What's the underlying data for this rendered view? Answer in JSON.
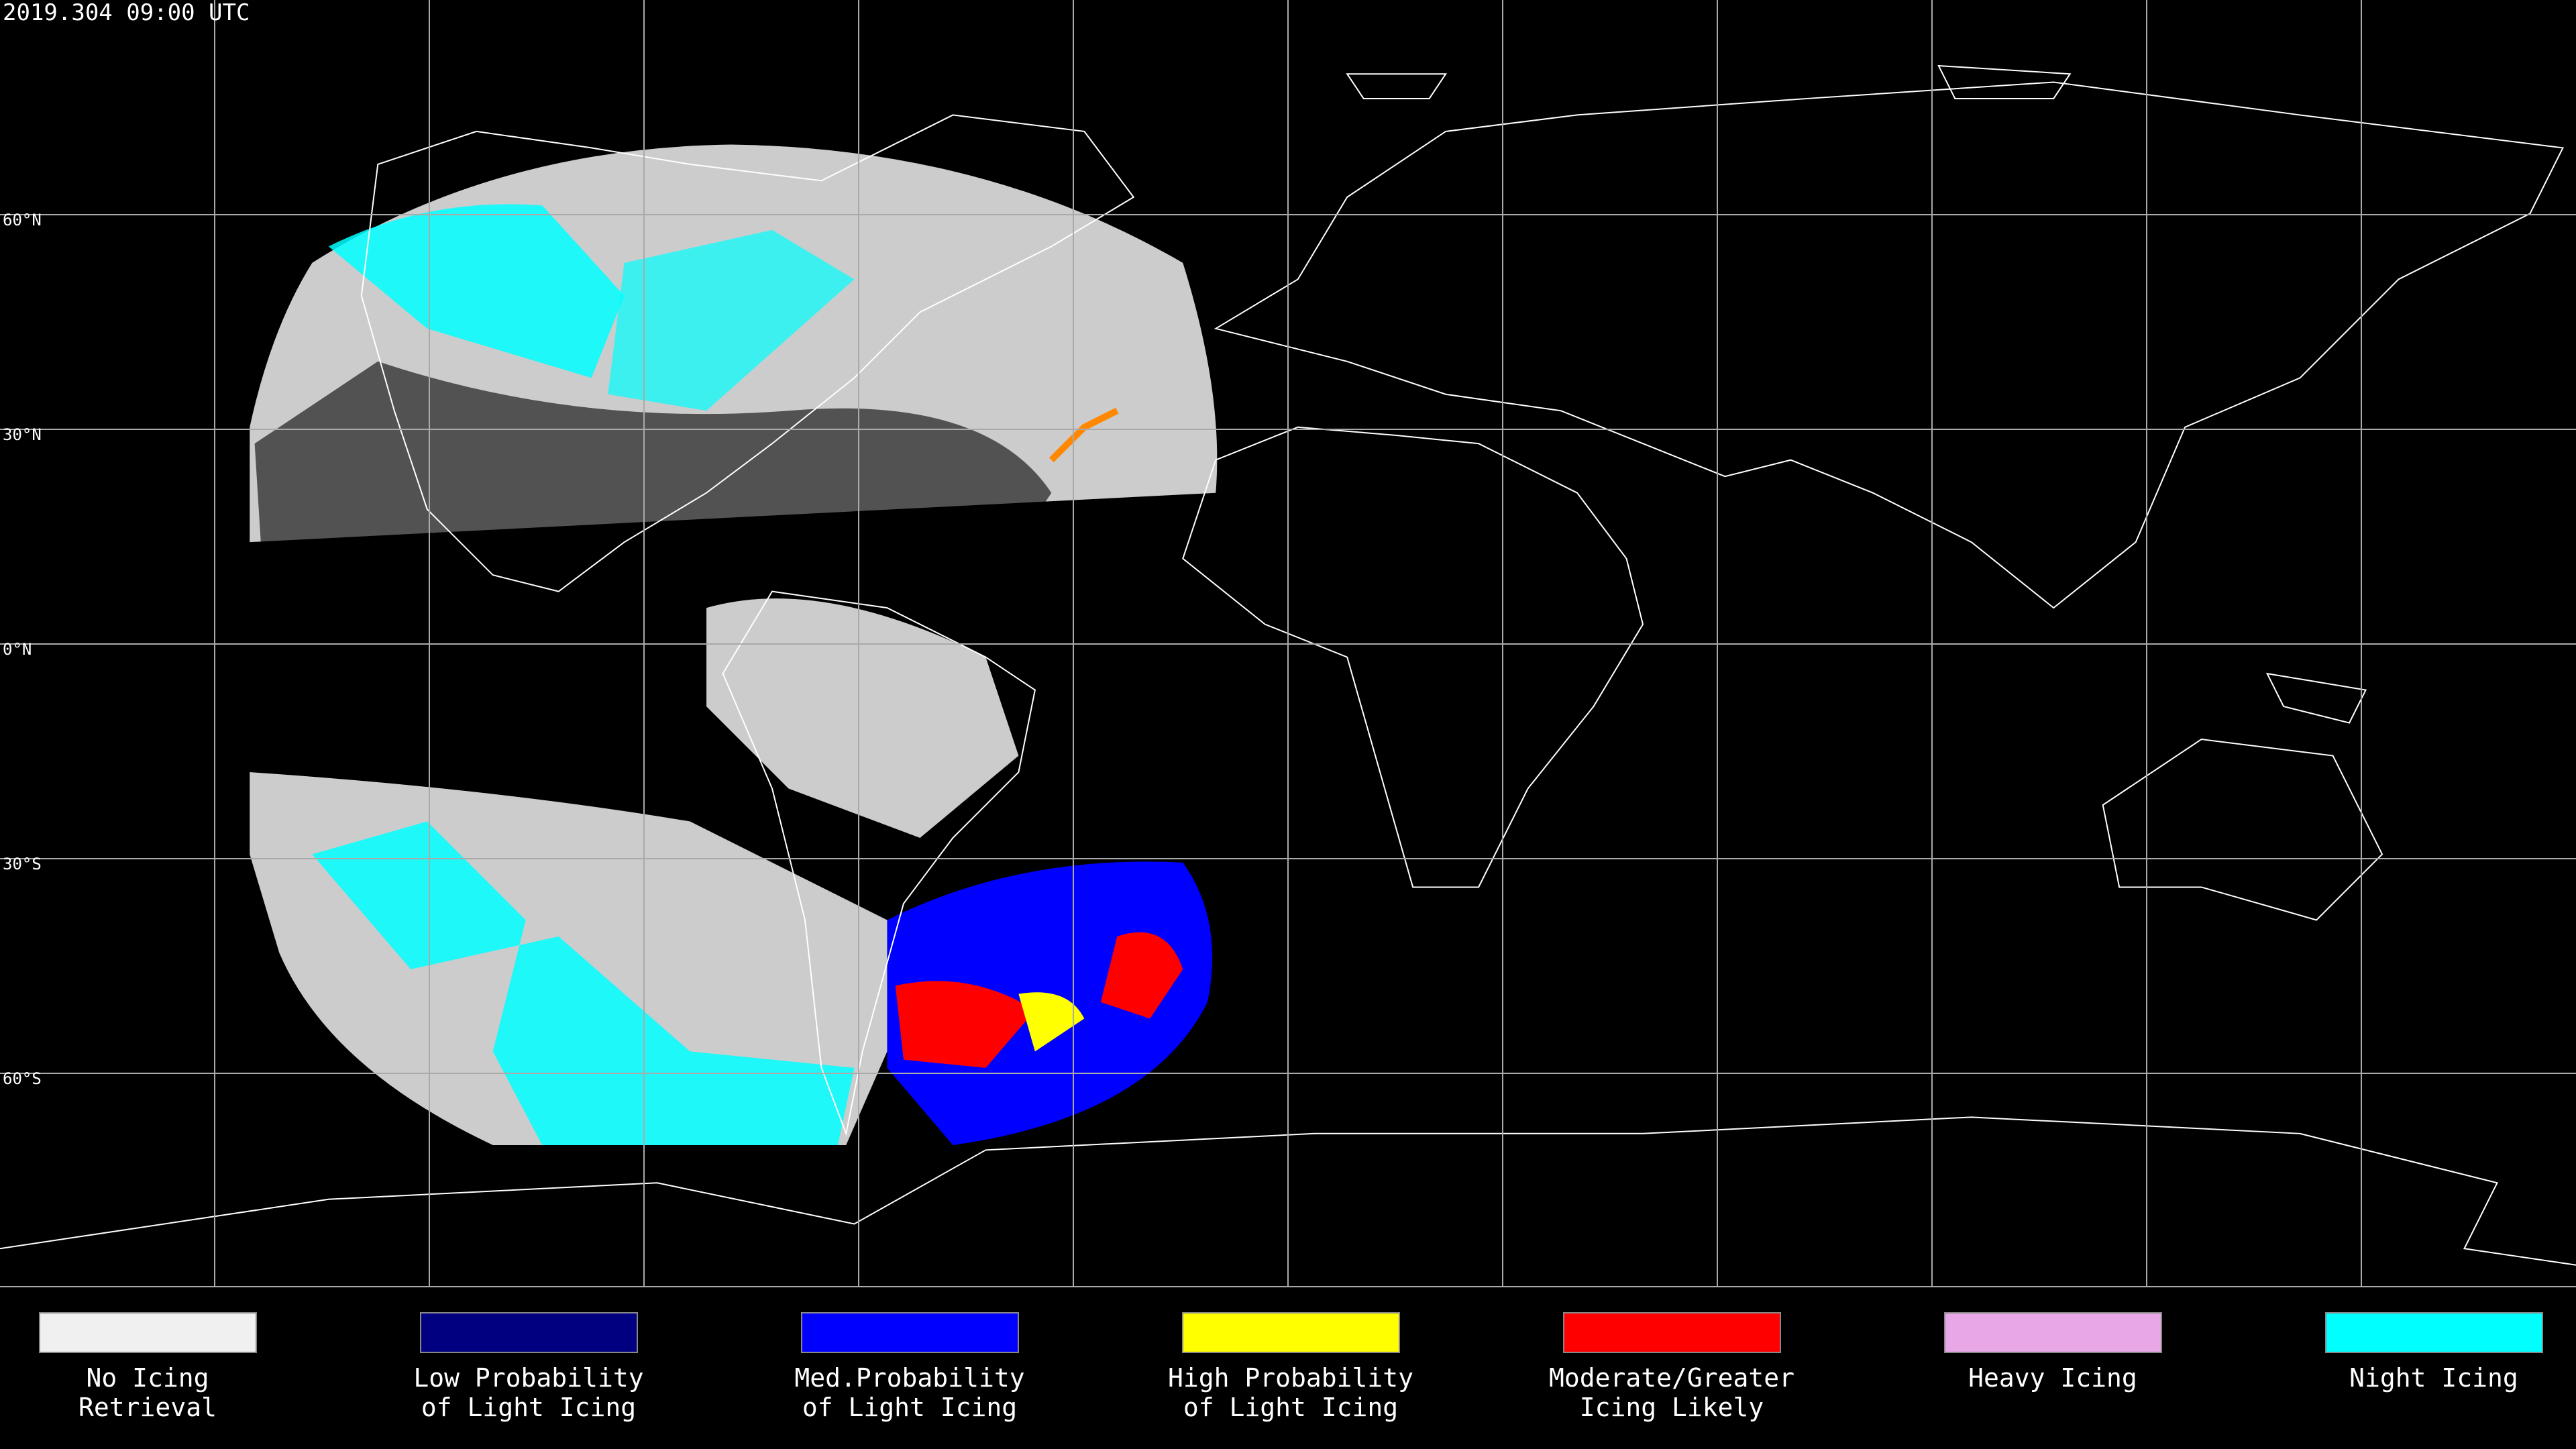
{
  "header": {
    "title": "2019.304 09:00 UTC"
  },
  "latitude_labels": [
    "60°N",
    "30°N",
    "0°N",
    "30°S",
    "60°S"
  ],
  "legend": [
    {
      "lines": [
        "No Icing",
        "Retrieval"
      ],
      "color": "#f0f0f0"
    },
    {
      "lines": [
        "Low Probability",
        "of Light Icing"
      ],
      "color": "#000080"
    },
    {
      "lines": [
        "Med.Probability",
        "of Light Icing"
      ],
      "color": "#0000ff"
    },
    {
      "lines": [
        "High Probability",
        "of Light Icing"
      ],
      "color": "#ffff00"
    },
    {
      "lines": [
        "Moderate/Greater",
        "Icing Likely"
      ],
      "color": "#ff0000"
    },
    {
      "lines": [
        "Heavy Icing"
      ],
      "color": "#e8a8e8"
    },
    {
      "lines": [
        "Night Icing"
      ],
      "color": "#00ffff"
    }
  ]
}
